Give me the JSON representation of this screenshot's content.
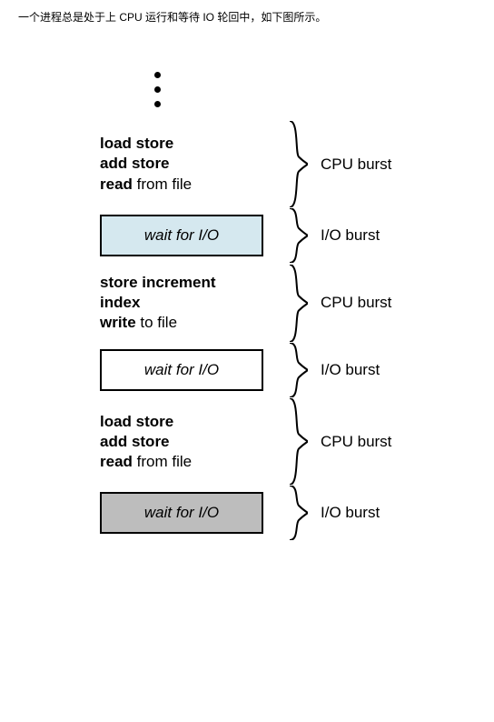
{
  "caption": "一个进程总是处于上 CPU 运行和等待 IO 轮回中，如下图所示。",
  "diagram": {
    "type": "flowchart",
    "background_color": "#ffffff",
    "text_color": "#000000",
    "font_family": "Arial",
    "brace_color": "#000000",
    "sections": [
      {
        "kind": "code",
        "lines": [
          {
            "bold": "load store",
            "rest": ""
          },
          {
            "bold": "add store",
            "rest": ""
          },
          {
            "bold": "read",
            "rest": " from file"
          }
        ],
        "label": "CPU burst",
        "brace_height": 95
      },
      {
        "kind": "io",
        "text": "wait for I/O",
        "fill": "#d5e8ef",
        "label": "I/O burst",
        "brace_height": 60
      },
      {
        "kind": "code",
        "lines": [
          {
            "bold": "store increment",
            "rest": ""
          },
          {
            "bold": "index",
            "rest": ""
          },
          {
            "bold": "write",
            "rest": " to file"
          }
        ],
        "label": "CPU burst",
        "brace_height": 85
      },
      {
        "kind": "io",
        "text": "wait for I/O",
        "fill": "#ffffff",
        "label": "I/O burst",
        "brace_height": 60
      },
      {
        "kind": "code",
        "lines": [
          {
            "bold": "load store",
            "rest": ""
          },
          {
            "bold": "add store",
            "rest": ""
          },
          {
            "bold": "read",
            "rest": " from file"
          }
        ],
        "label": "CPU burst",
        "brace_height": 95
      },
      {
        "kind": "io",
        "text": "wait for I/O",
        "fill": "#bdbdbd",
        "label": "I/O burst",
        "brace_height": 60
      }
    ],
    "dot_color": "#000000",
    "dot_size": 7
  }
}
